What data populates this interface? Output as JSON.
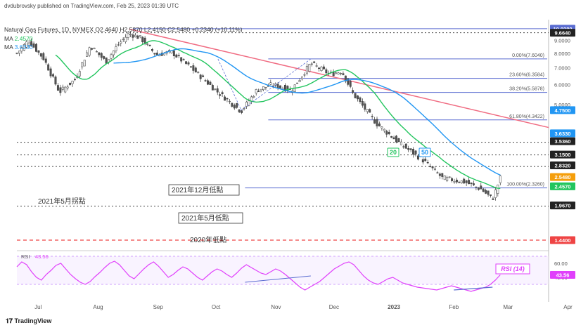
{
  "header": {
    "publisher": "dvdubrovsky published on TradingView.com, Feb 25, 2023 01:39 UTC",
    "symbol_line": "Natural Gas Futures, 1D, NYMEX  O2.4640  H2.5870  L2.4150  C2.5480  +0.2340 (+10.11%)",
    "ma1_label": "MA",
    "ma1_value": "2.4570",
    "ma2_label": "MA",
    "ma2_value": "3.6330"
  },
  "footer": {
    "brand": "TradingView"
  },
  "colors": {
    "up": "#26a69a",
    "down": "#ef5350",
    "candle_up": "#ffffff",
    "candle_dark": "#555555",
    "ma20": "#22c55e",
    "ma50": "#2196f3",
    "trend": "#f06c82",
    "fib": "#5a6cd1",
    "rsi": "#e040fb",
    "low_line": "#ef4444"
  },
  "chart_data": {
    "type": "candlestick",
    "title": "Natural Gas Futures",
    "x_ticks": [
      "Jul",
      "Aug",
      "Sep",
      "Oct",
      "Nov",
      "Dec",
      "2023",
      "Feb",
      "Mar",
      "Apr"
    ],
    "y_axis_label": "USD MMBtu",
    "y_scale": "log",
    "y_ticks": [
      "9.0000",
      "8.0000",
      "7.0000",
      "6.0000",
      "5.0000"
    ],
    "price_tags": [
      {
        "text": "10.0280",
        "bg": "#5a6cd1"
      },
      {
        "text": "9.6640",
        "bg": "#222222"
      },
      {
        "text": "4.7500",
        "bg": "#2196f3"
      },
      {
        "text": "3.6330",
        "bg": "#2196f3"
      },
      {
        "text": "3.5360",
        "bg": "#222222"
      },
      {
        "text": "3.1500",
        "bg": "#222222"
      },
      {
        "text": "2.8320",
        "bg": "#222222"
      },
      {
        "text": "2.5480",
        "bg": "#f59e0b"
      },
      {
        "text": "2.4570",
        "bg": "#22c55e"
      },
      {
        "text": "1.9670",
        "bg": "#222222"
      },
      {
        "text": "1.4400",
        "bg": "#ef4444"
      }
    ],
    "fib_levels": [
      {
        "label": "0.00%(7.6040)",
        "value": 7.604
      },
      {
        "label": "23.60%(6.3584)",
        "value": 6.3584
      },
      {
        "label": "38.20%(5.5878)",
        "value": 5.5878
      },
      {
        "label": "61.80%(4.3422)",
        "value": 4.3422
      },
      {
        "label": "100.00%(2.3260)",
        "value": 2.326
      }
    ],
    "annotations": {
      "low_dec_2021": "2021年12月低點",
      "pivot_may_2021": "2021年5月拐點",
      "low_may_2021": "2021年5月低點",
      "low_2020": "2020年低點",
      "ma20_tag": "20",
      "ma50_tag": "50"
    },
    "rsi": {
      "label": "RSI",
      "value": "43.56",
      "badge": "RSI (14)",
      "y_ticks": [
        "60.00",
        "40.00"
      ],
      "series": [
        55,
        62,
        58,
        48,
        40,
        36,
        44,
        50,
        57,
        60,
        52,
        44,
        38,
        33,
        30,
        34,
        41,
        47,
        54,
        60,
        63,
        58,
        50,
        42,
        38,
        45,
        52,
        58,
        62,
        56,
        48,
        40,
        44,
        50,
        55,
        52,
        46,
        40,
        36,
        42,
        48,
        52,
        49,
        44,
        40,
        46,
        53,
        58,
        54,
        50,
        46,
        44,
        48,
        52,
        49,
        44,
        38,
        32,
        26,
        22,
        26,
        30,
        34,
        40,
        46,
        52,
        56,
        60,
        62,
        58,
        50,
        42,
        36,
        32,
        30,
        34,
        38,
        40,
        36,
        32,
        30,
        28,
        26,
        25,
        24,
        23,
        22,
        24,
        26,
        28,
        26,
        24,
        22,
        20,
        22,
        24,
        26,
        30,
        36,
        43.56
      ]
    }
  }
}
